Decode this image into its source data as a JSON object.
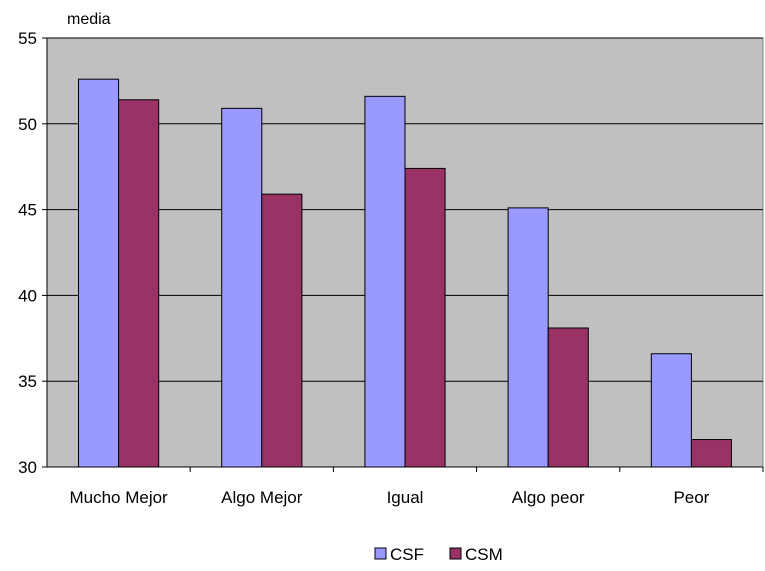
{
  "chart_data": {
    "type": "bar",
    "ylabel": "media",
    "categories": [
      "Mucho Mejor",
      "Algo Mejor",
      "Igual",
      "Algo peor",
      "Peor"
    ],
    "series": [
      {
        "name": "CSF",
        "values": [
          52.6,
          50.9,
          51.6,
          45.1,
          36.6
        ],
        "color": "#9999ff"
      },
      {
        "name": "CSM",
        "values": [
          51.4,
          45.9,
          47.4,
          38.1,
          31.6
        ],
        "color": "#993366"
      }
    ],
    "ylim": [
      30,
      55
    ],
    "yticks": [
      30,
      35,
      40,
      45,
      50,
      55
    ],
    "grid": true,
    "legend_position": "bottom",
    "plot_background": "#c0c0c0"
  }
}
